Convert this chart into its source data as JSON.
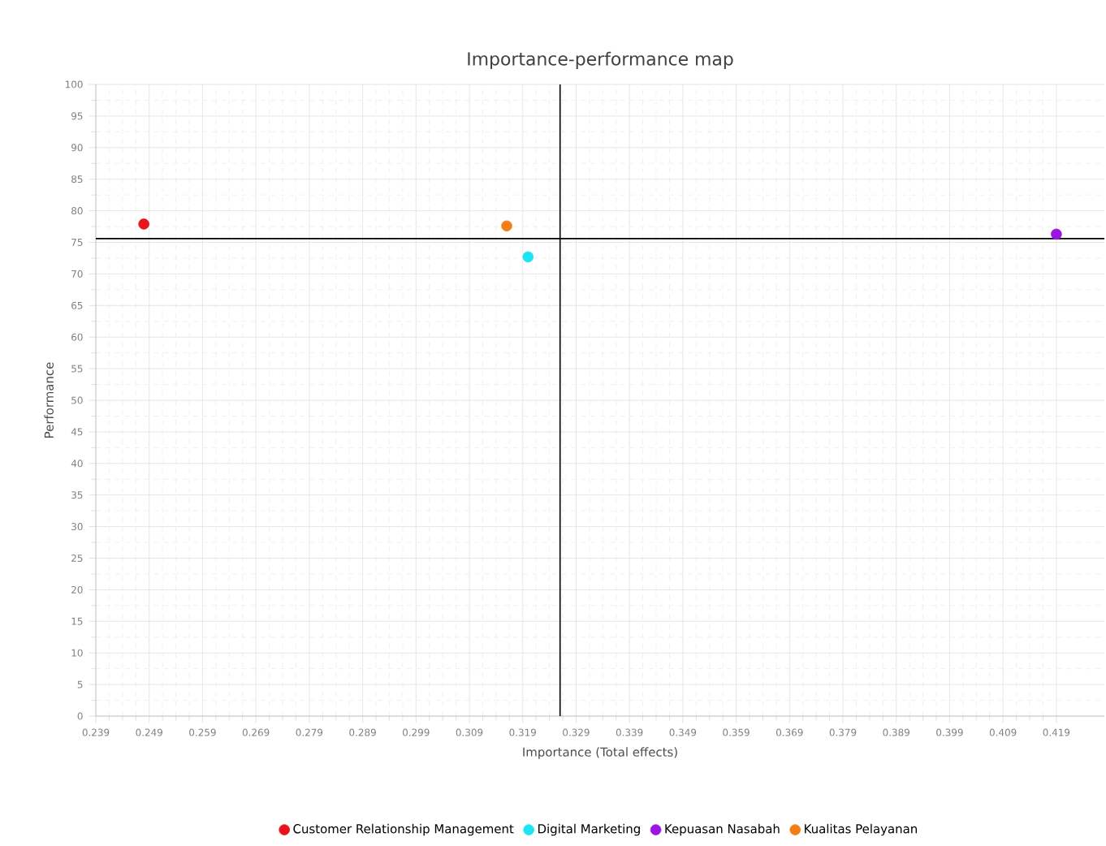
{
  "chart_data": {
    "type": "scatter",
    "title": "Importance-performance map",
    "xlabel": "Importance (Total effects)",
    "ylabel": "Performance",
    "xlim": [
      0.239,
      0.428
    ],
    "xticks": [
      0.239,
      0.249,
      0.259,
      0.269,
      0.279,
      0.289,
      0.299,
      0.309,
      0.319,
      0.329,
      0.339,
      0.349,
      0.359,
      0.369,
      0.379,
      0.389,
      0.399,
      0.409,
      0.419
    ],
    "ylim": [
      0,
      100
    ],
    "yticks": [
      0,
      5,
      10,
      15,
      20,
      25,
      30,
      35,
      40,
      45,
      50,
      55,
      60,
      65,
      70,
      75,
      80,
      85,
      90,
      95,
      100
    ],
    "grid": true,
    "legend": "bottom",
    "marker": "circle",
    "series": [
      {
        "name": "Customer Relationship Management",
        "color": "#e8141b",
        "x": [
          0.248
        ],
        "values": [
          77.9
        ]
      },
      {
        "name": "Digital Marketing",
        "color": "#1ee3f0",
        "x": [
          0.32
        ],
        "values": [
          72.7
        ]
      },
      {
        "name": "Kepuasan Nasabah",
        "color": "#9b16e0",
        "x": [
          0.419
        ],
        "values": [
          76.3
        ]
      },
      {
        "name": "Kualitas Pelayanan",
        "color": "#f07f17",
        "x": [
          0.316
        ],
        "values": [
          77.6
        ]
      }
    ],
    "ref_lines": [
      {
        "axis": "x",
        "value": 0.326,
        "color": "#000000"
      },
      {
        "axis": "y",
        "value": 75.6,
        "color": "#000000"
      }
    ]
  }
}
